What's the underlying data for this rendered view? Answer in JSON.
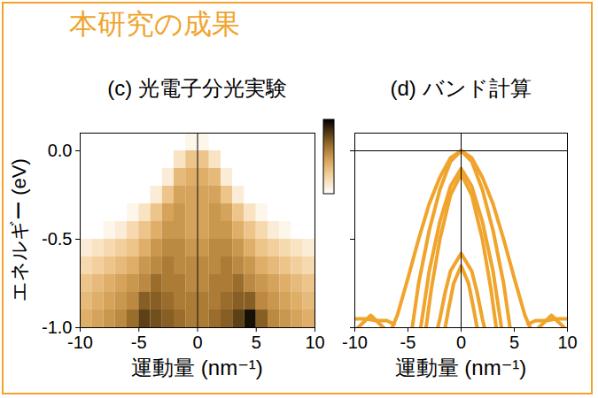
{
  "title": "本研究の成果",
  "chart_data": [
    {
      "type": "heatmap",
      "title": "(c) 光電子分光実験",
      "x_label": "運動量 (nm⁻¹)",
      "y_label": "エネルギー (eV)",
      "xlim": [
        -10,
        10
      ],
      "xticks": [
        -10,
        -5,
        0,
        5,
        10
      ],
      "ylim": [
        -1.0,
        0.1
      ],
      "yticks": [
        {
          "value": -1.0,
          "label": "-1.0"
        },
        {
          "value": -0.5,
          "label": "-0.5"
        },
        {
          "value": 0.0,
          "label": "0.0"
        }
      ],
      "rules": {
        "x": [
          0
        ]
      },
      "x_edges": [
        -10,
        -9,
        -8,
        -7,
        -6,
        -5,
        -4,
        -3,
        -2,
        -1,
        0,
        1,
        2,
        3,
        4,
        5,
        6,
        7,
        8,
        9,
        10
      ],
      "y_edges": [
        0.1,
        0.0,
        -0.1,
        -0.2,
        -0.3,
        -0.4,
        -0.5,
        -0.6,
        -0.7,
        -0.8,
        -0.9,
        -1.0
      ],
      "z": [
        [
          0,
          0,
          0,
          0,
          0,
          0,
          0,
          0,
          0,
          0.05,
          0.05,
          0,
          0,
          0,
          0,
          0,
          0,
          0,
          0,
          0
        ],
        [
          0,
          0,
          0,
          0,
          0,
          0,
          0,
          0,
          0.15,
          0.3,
          0.3,
          0.15,
          0,
          0,
          0,
          0,
          0,
          0,
          0,
          0
        ],
        [
          0,
          0,
          0,
          0,
          0,
          0,
          0,
          0.1,
          0.35,
          0.4,
          0.4,
          0.35,
          0.1,
          0,
          0,
          0,
          0,
          0,
          0,
          0
        ],
        [
          0,
          0,
          0,
          0,
          0,
          0,
          0.1,
          0.3,
          0.45,
          0.45,
          0.45,
          0.45,
          0.3,
          0.1,
          0,
          0,
          0,
          0,
          0,
          0
        ],
        [
          0,
          0,
          0,
          0,
          0.05,
          0.15,
          0.3,
          0.45,
          0.5,
          0.45,
          0.45,
          0.5,
          0.45,
          0.3,
          0.15,
          0.05,
          0,
          0,
          0,
          0
        ],
        [
          0,
          0,
          0.05,
          0.1,
          0.2,
          0.3,
          0.4,
          0.5,
          0.5,
          0.45,
          0.45,
          0.5,
          0.5,
          0.4,
          0.3,
          0.2,
          0.1,
          0.05,
          0,
          0
        ],
        [
          0.1,
          0.15,
          0.2,
          0.25,
          0.3,
          0.4,
          0.5,
          0.55,
          0.55,
          0.5,
          0.5,
          0.55,
          0.55,
          0.5,
          0.4,
          0.3,
          0.25,
          0.2,
          0.15,
          0.1
        ],
        [
          0.2,
          0.25,
          0.3,
          0.35,
          0.4,
          0.5,
          0.55,
          0.6,
          0.55,
          0.55,
          0.55,
          0.55,
          0.6,
          0.55,
          0.5,
          0.4,
          0.35,
          0.3,
          0.25,
          0.2
        ],
        [
          0.3,
          0.35,
          0.4,
          0.45,
          0.5,
          0.55,
          0.65,
          0.6,
          0.6,
          0.55,
          0.55,
          0.6,
          0.6,
          0.65,
          0.55,
          0.5,
          0.45,
          0.4,
          0.35,
          0.3
        ],
        [
          0.35,
          0.4,
          0.45,
          0.5,
          0.55,
          0.7,
          0.7,
          0.65,
          0.6,
          0.6,
          0.6,
          0.6,
          0.65,
          0.7,
          0.7,
          0.55,
          0.5,
          0.45,
          0.4,
          0.35
        ],
        [
          0.4,
          0.45,
          0.5,
          0.55,
          0.65,
          0.8,
          0.75,
          0.7,
          0.65,
          0.6,
          0.6,
          0.65,
          0.7,
          0.8,
          0.95,
          0.7,
          0.55,
          0.5,
          0.45,
          0.4
        ]
      ],
      "colorbar": {
        "range": [
          0,
          1
        ],
        "colors": [
          "#ffffff",
          "#eea234",
          "#000000"
        ]
      },
      "tick_labels": true
    },
    {
      "type": "line",
      "title": "(d) バンド計算",
      "x_label": "運動量 (nm⁻¹)",
      "xlim": [
        -10,
        10
      ],
      "xticks": [
        -10,
        -5,
        0,
        5,
        10
      ],
      "ylim": [
        -1.0,
        0.1
      ],
      "yticks": [
        {
          "value": -1.0,
          "label": "-1.0"
        },
        {
          "value": -0.5,
          "label": "-0.5"
        },
        {
          "value": 0.0,
          "label": "0.0"
        }
      ],
      "rules": {
        "x": [
          0
        ],
        "y": [
          0
        ]
      },
      "tick_labels": "x",
      "color": "#f0a42c",
      "series": [
        {
          "x": [
            -6.5,
            -6,
            -5,
            -4,
            -3,
            -2,
            -1,
            0,
            1,
            2,
            3,
            4,
            5,
            6,
            6.5
          ],
          "values": [
            -1.0,
            -0.93,
            -0.72,
            -0.5,
            -0.3,
            -0.15,
            -0.04,
            0,
            -0.04,
            -0.15,
            -0.3,
            -0.5,
            -0.72,
            -0.93,
            -1.0
          ]
        },
        {
          "x": [
            -4.6,
            -4,
            -3,
            -2,
            -1,
            0,
            1,
            2,
            3,
            4,
            4.6
          ],
          "values": [
            -1.0,
            -0.75,
            -0.45,
            -0.22,
            -0.06,
            0,
            -0.06,
            -0.22,
            -0.45,
            -0.75,
            -1.0
          ]
        },
        {
          "x": [
            -3.8,
            -3,
            -2,
            -1,
            0,
            1,
            2,
            3,
            3.8
          ],
          "values": [
            -1.0,
            -0.68,
            -0.4,
            -0.2,
            -0.1,
            -0.2,
            -0.4,
            -0.68,
            -1.0
          ]
        },
        {
          "x": [
            -3.3,
            -2.8,
            -2,
            -1,
            0,
            1,
            2,
            2.8,
            3.3
          ],
          "values": [
            -1.0,
            -0.78,
            -0.5,
            -0.25,
            -0.13,
            -0.25,
            -0.5,
            -0.78,
            -1.0
          ]
        },
        {
          "x": [
            -2.2,
            -2,
            -1.5,
            -1,
            0,
            1,
            1.5,
            2,
            2.2
          ],
          "values": [
            -1.0,
            -0.95,
            -0.8,
            -0.68,
            -0.58,
            -0.68,
            -0.8,
            -0.95,
            -1.0
          ]
        },
        {
          "x": [
            -1.5,
            -1.2,
            -0.7,
            0,
            0.7,
            1.2,
            1.5
          ],
          "values": [
            -1.0,
            -0.9,
            -0.75,
            -0.65,
            -0.75,
            -0.9,
            -1.0
          ]
        },
        {
          "x": [
            -10,
            -9,
            -8,
            -7,
            -6.3
          ],
          "values": [
            -0.95,
            -0.95,
            -0.96,
            -0.96,
            -0.98
          ]
        },
        {
          "x": [
            6.3,
            7,
            8,
            9,
            10
          ],
          "values": [
            -0.98,
            -0.96,
            -0.96,
            -0.95,
            -0.95
          ]
        },
        {
          "x": [
            -9.7,
            -8.5,
            -7.3
          ],
          "values": [
            -1.0,
            -0.93,
            -1.0
          ]
        },
        {
          "x": [
            7.3,
            8.5,
            9.7
          ],
          "values": [
            -1.0,
            -0.93,
            -1.0
          ]
        }
      ]
    }
  ]
}
